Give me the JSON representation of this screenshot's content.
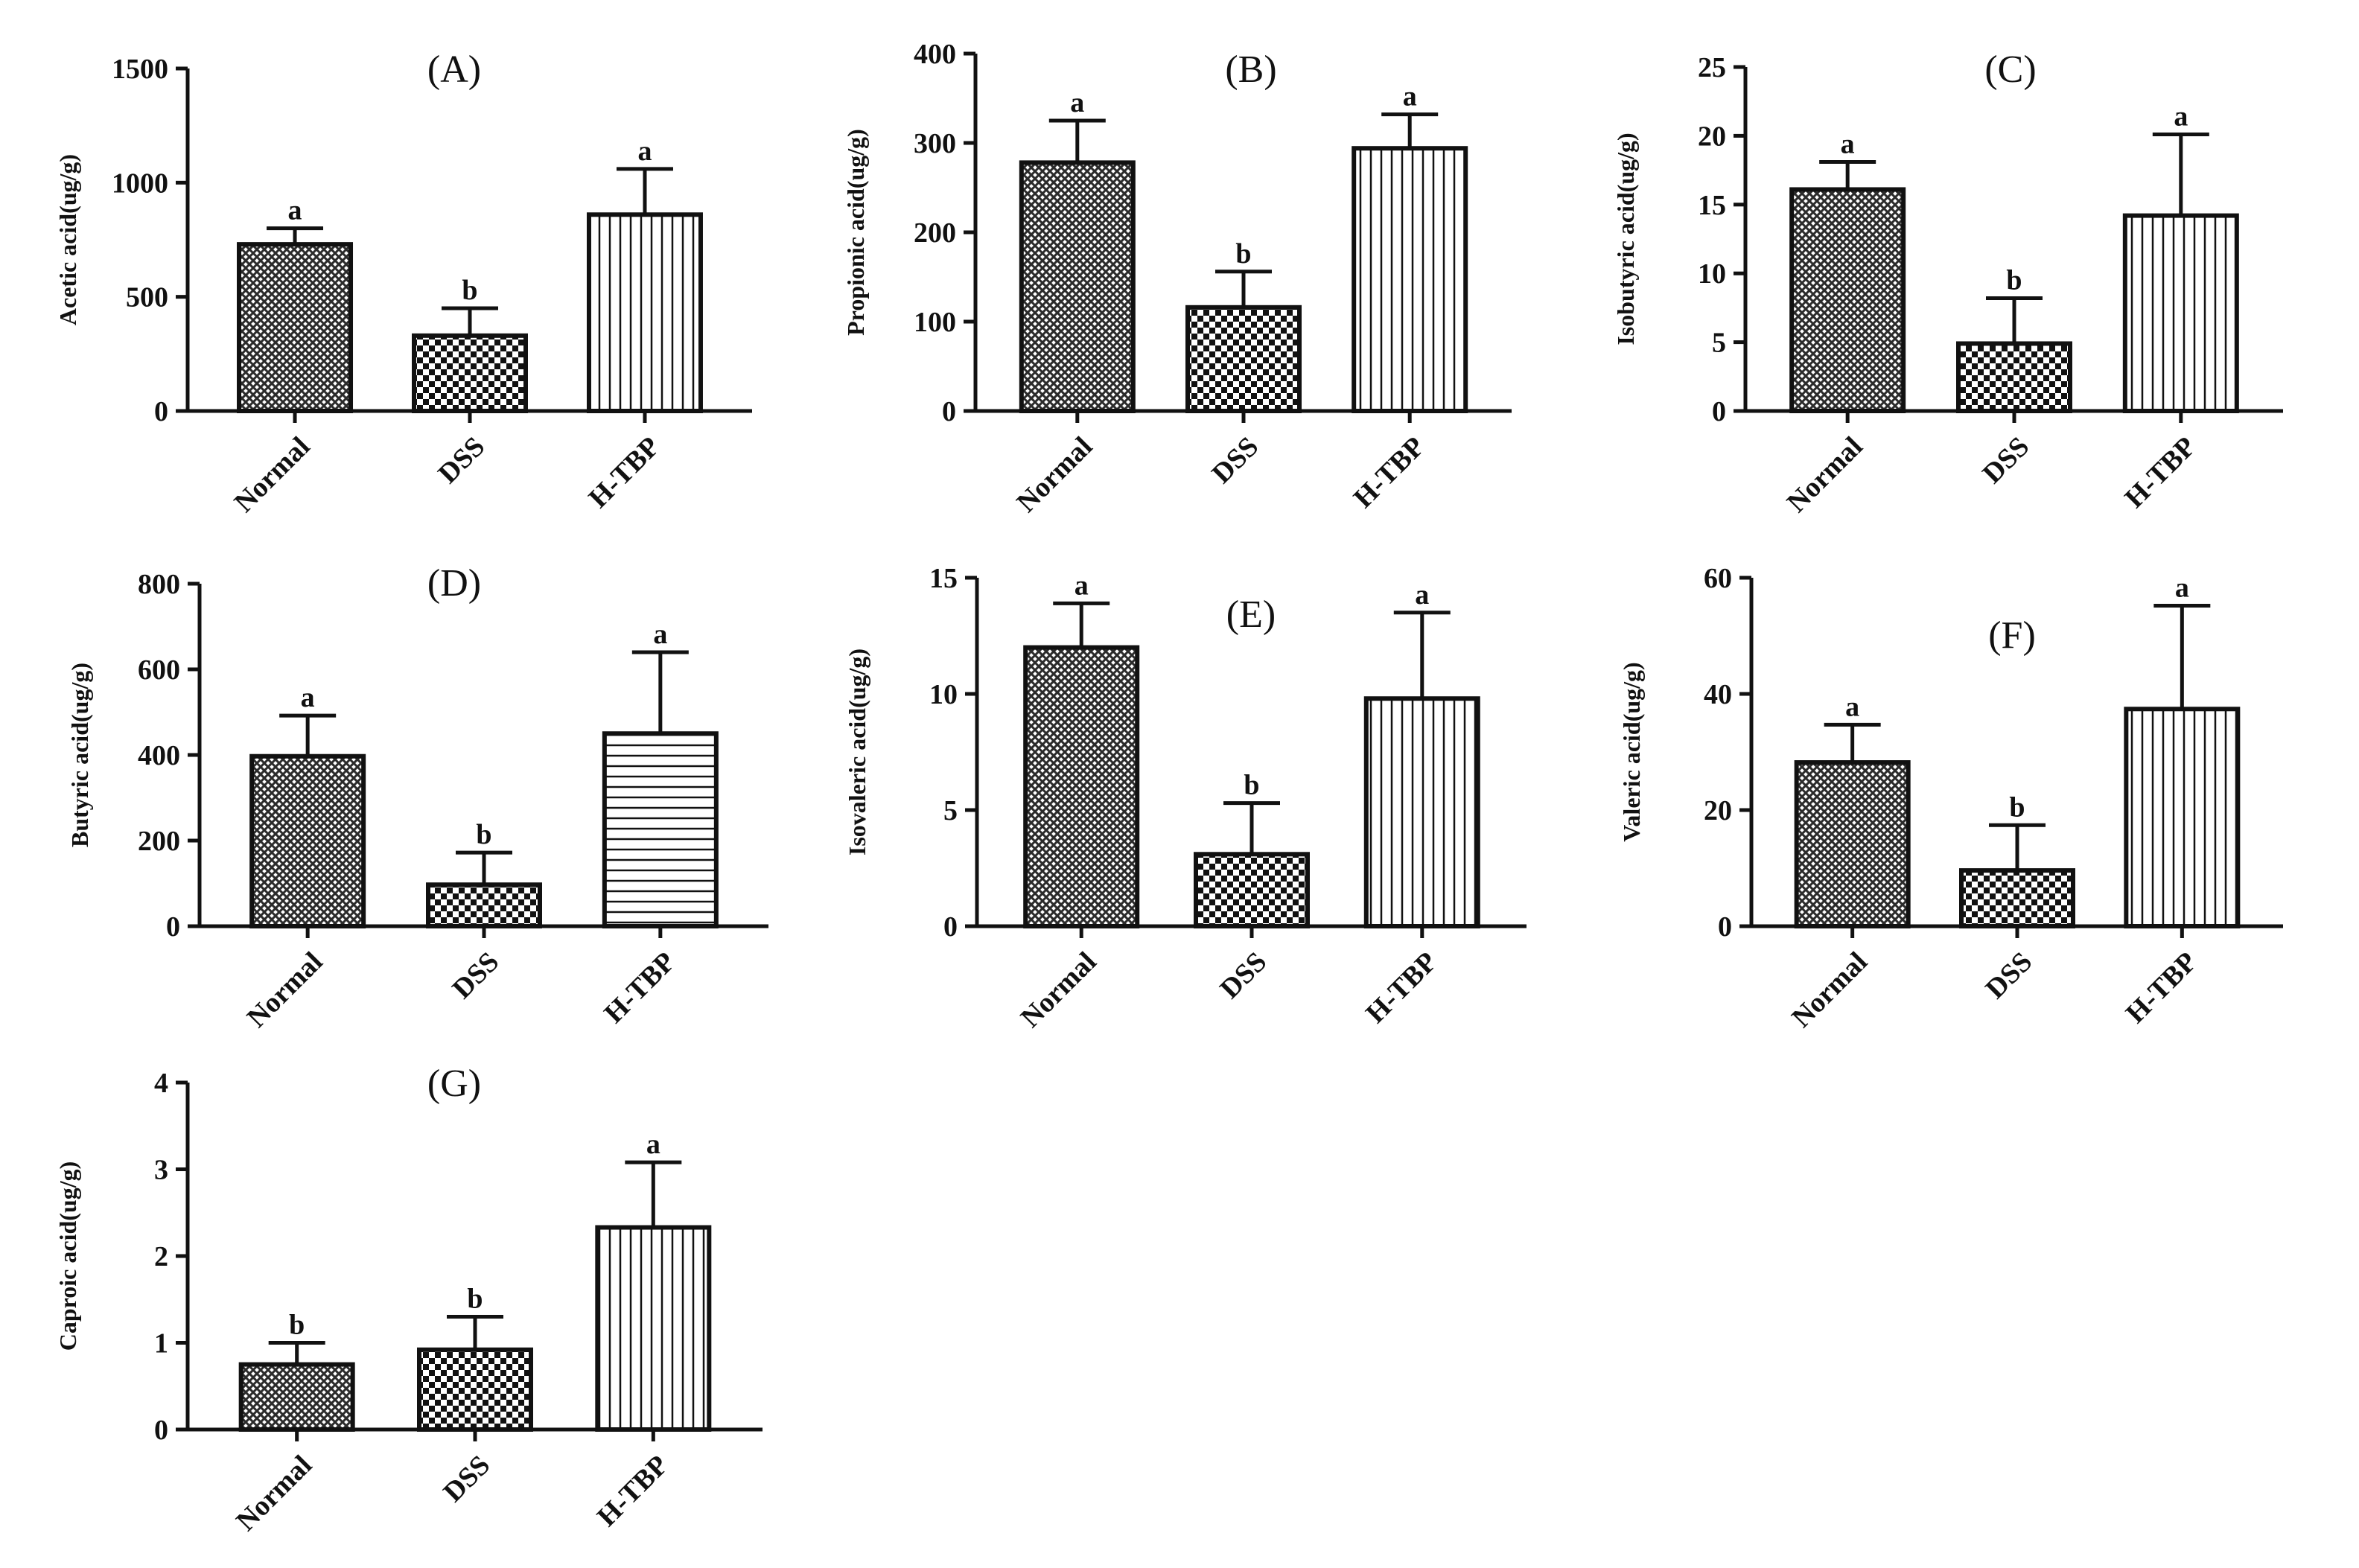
{
  "chart_data": [
    {
      "panel": "(A)",
      "type": "bar",
      "title": "(A)",
      "xlabel": "",
      "ylabel": "Acetic acid(ug/g)",
      "ylim": [
        0,
        1500
      ],
      "yticks": [
        "0",
        "500",
        "1000",
        "1500"
      ],
      "categories": [
        "Normal",
        "DSS",
        "H-TBP"
      ],
      "values": [
        730,
        330,
        860
      ],
      "errors": [
        70,
        120,
        200
      ],
      "letters": [
        "a",
        "b",
        "a"
      ],
      "fill_patterns": [
        "crosshatch",
        "checker",
        "vertical"
      ]
    },
    {
      "panel": "(B)",
      "type": "bar",
      "title": "(B)",
      "xlabel": "",
      "ylabel": "Propionic acid(ug/g)",
      "ylim": [
        0,
        400
      ],
      "yticks": [
        "0",
        "100",
        "200",
        "300",
        "400"
      ],
      "categories": [
        "Normal",
        "DSS",
        "H-TBP"
      ],
      "values": [
        278,
        116,
        294
      ],
      "errors": [
        47,
        40,
        38
      ],
      "letters": [
        "a",
        "b",
        "a"
      ],
      "fill_patterns": [
        "crosshatch",
        "checker",
        "vertical"
      ]
    },
    {
      "panel": "(C)",
      "type": "bar",
      "title": "(C)",
      "xlabel": "",
      "ylabel": "Isobutyric acid(ug/g)",
      "ylim": [
        0,
        25
      ],
      "yticks": [
        "0",
        "5",
        "10",
        "15",
        "20",
        "25"
      ],
      "categories": [
        "Normal",
        "DSS",
        "H-TBP"
      ],
      "values": [
        16.1,
        4.9,
        14.2
      ],
      "errors": [
        2.0,
        3.3,
        5.9
      ],
      "letters": [
        "a",
        "b",
        "a"
      ],
      "fill_patterns": [
        "crosshatch",
        "checker",
        "vertical"
      ]
    },
    {
      "panel": "(D)",
      "type": "bar",
      "title": "(D)",
      "xlabel": "",
      "ylabel": "Butyric acid(ug/g)",
      "ylim": [
        0,
        800
      ],
      "yticks": [
        "0",
        "200",
        "400",
        "600",
        "800"
      ],
      "categories": [
        "Normal",
        "DSS",
        "H-TBP"
      ],
      "values": [
        397,
        97,
        450
      ],
      "errors": [
        95,
        75,
        190
      ],
      "letters": [
        "a",
        "b",
        "a"
      ],
      "fill_patterns": [
        "crosshatch",
        "checker",
        "horizontal"
      ]
    },
    {
      "panel": "(E)",
      "type": "bar",
      "title": "(E)",
      "xlabel": "",
      "ylabel": "Isovaleric acid(ug/g)",
      "ylim": [
        0,
        15
      ],
      "yticks": [
        "0",
        "5",
        "10",
        "15"
      ],
      "categories": [
        "Normal",
        "DSS",
        "H-TBP"
      ],
      "values": [
        12.0,
        3.1,
        9.8
      ],
      "errors": [
        1.9,
        2.2,
        3.7
      ],
      "letters": [
        "a",
        "b",
        "a"
      ],
      "fill_patterns": [
        "crosshatch",
        "checker",
        "vertical"
      ]
    },
    {
      "panel": "(F)",
      "type": "bar",
      "title": "(F)",
      "xlabel": "",
      "ylabel": "Valeric acid(ug/g)",
      "ylim": [
        0,
        60
      ],
      "yticks": [
        "0",
        "20",
        "40",
        "60"
      ],
      "categories": [
        "Normal",
        "DSS",
        "H-TBP"
      ],
      "values": [
        28.2,
        9.6,
        37.4
      ],
      "errors": [
        6.5,
        7.8,
        17.8
      ],
      "letters": [
        "a",
        "b",
        "a"
      ],
      "fill_patterns": [
        "crosshatch",
        "checker",
        "vertical"
      ]
    },
    {
      "panel": "(G)",
      "type": "bar",
      "title": "(G)",
      "xlabel": "",
      "ylabel": "Caproic acid(ug/g)",
      "ylim": [
        0,
        4
      ],
      "yticks": [
        "0",
        "1",
        "2",
        "3",
        "4"
      ],
      "categories": [
        "Normal",
        "DSS",
        "H-TBP"
      ],
      "values": [
        0.75,
        0.92,
        2.33
      ],
      "errors": [
        0.25,
        0.38,
        0.75
      ],
      "letters": [
        "b",
        "b",
        "a"
      ],
      "fill_patterns": [
        "crosshatch",
        "checker",
        "vertical"
      ]
    }
  ]
}
